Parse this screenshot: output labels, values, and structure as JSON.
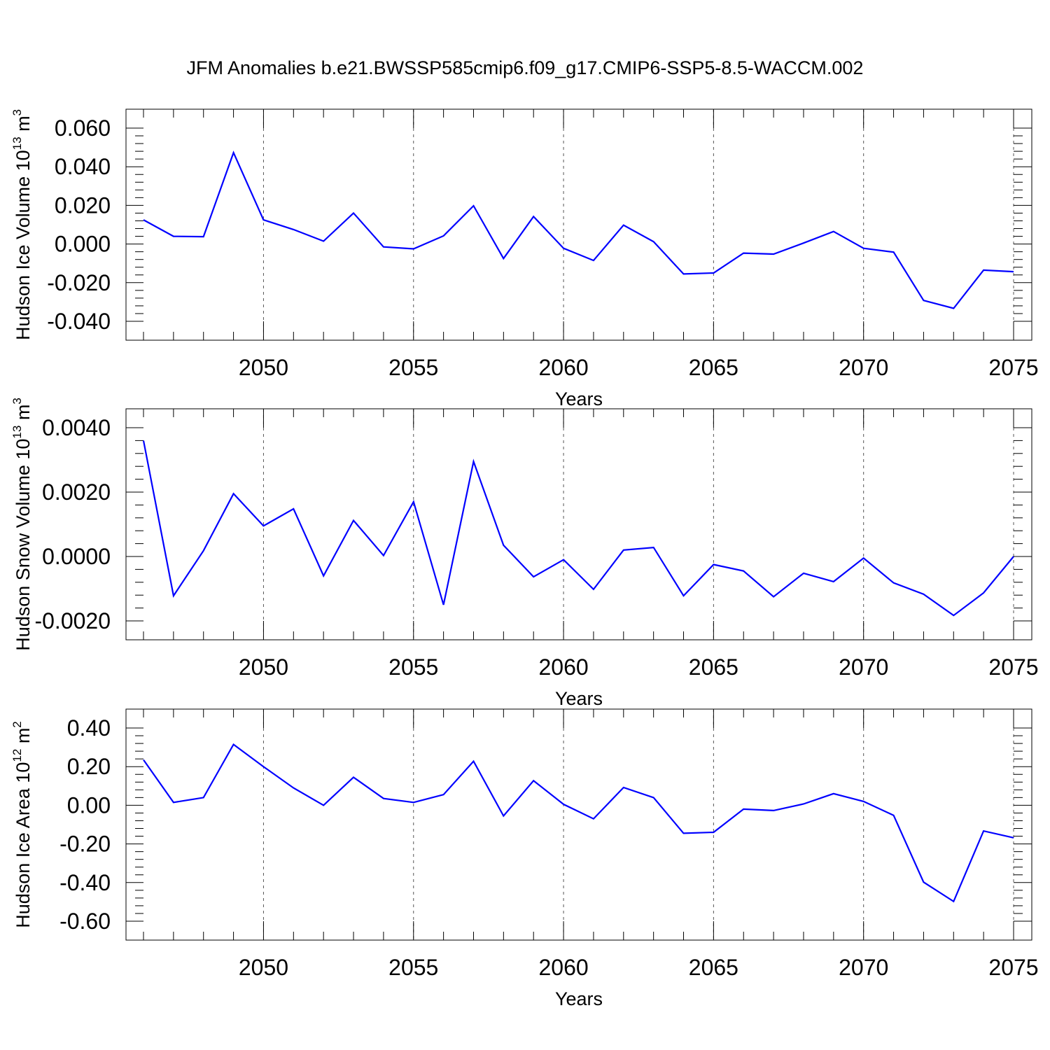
{
  "title": "JFM Anomalies b.e21.BWSSP585cmip6.f09_g17.CMIP6-SSP5-8.5-WACCM.002",
  "line_color": "#0000ff",
  "chart_data": [
    {
      "type": "line",
      "ylabel": "Hudson Ice Volume",
      "ylabel_unit": "10",
      "ylabel_exp": "13",
      "ylabel_unit_tail": " m",
      "ylabel_unit_exp": "3",
      "xlabel": "Years",
      "xlim": [
        2046,
        2075
      ],
      "ylim": [
        -0.04,
        0.06
      ],
      "grid": "dashed vertical at major x ticks",
      "xticks": [
        2050,
        2055,
        2060,
        2065,
        2070,
        2075
      ],
      "xtick_labels": [
        "2050",
        "2055",
        "2060",
        "2065",
        "2070",
        "2075"
      ],
      "yticks": [
        0.06,
        0.04,
        0.02,
        0.0,
        -0.02,
        -0.04
      ],
      "ytick_labels": [
        "0.060",
        "0.040",
        "0.020",
        "0.000",
        "-0.020",
        "-0.040"
      ],
      "x": [
        2046,
        2047,
        2048,
        2049,
        2050,
        2051,
        2052,
        2053,
        2054,
        2055,
        2056,
        2057,
        2058,
        2059,
        2060,
        2061,
        2062,
        2063,
        2064,
        2065,
        2066,
        2067,
        2068,
        2069,
        2070,
        2071,
        2072,
        2073,
        2074,
        2075
      ],
      "values": [
        0.0125,
        0.004,
        0.0038,
        0.0473,
        0.0125,
        0.0075,
        0.0015,
        0.016,
        -0.0015,
        -0.0025,
        0.0042,
        0.0198,
        -0.0075,
        0.0142,
        -0.0022,
        -0.0085,
        0.0098,
        0.0012,
        -0.0155,
        -0.015,
        -0.0047,
        -0.0052,
        0.0005,
        0.0065,
        -0.0022,
        -0.0042,
        -0.0292,
        -0.0333,
        -0.0135,
        -0.0143
      ]
    },
    {
      "type": "line",
      "ylabel": "Hudson Snow Volume",
      "ylabel_unit": "10",
      "ylabel_exp": "13",
      "ylabel_unit_tail": " m",
      "ylabel_unit_exp": "3",
      "xlabel": "Years",
      "xlim": [
        2046,
        2075
      ],
      "ylim": [
        -0.002,
        0.004
      ],
      "grid": "dashed vertical at major x ticks",
      "xticks": [
        2050,
        2055,
        2060,
        2065,
        2070,
        2075
      ],
      "xtick_labels": [
        "2050",
        "2055",
        "2060",
        "2065",
        "2070",
        "2075"
      ],
      "yticks": [
        0.004,
        0.002,
        0.0,
        -0.002
      ],
      "ytick_labels": [
        "0.0040",
        "0.0020",
        "0.0000",
        "-0.0020"
      ],
      "x": [
        2046,
        2047,
        2048,
        2049,
        2050,
        2051,
        2052,
        2053,
        2054,
        2055,
        2056,
        2057,
        2058,
        2059,
        2060,
        2061,
        2062,
        2063,
        2064,
        2065,
        2066,
        2067,
        2068,
        2069,
        2070,
        2071,
        2072,
        2073,
        2074,
        2075
      ],
      "values": [
        0.0036,
        -0.00122,
        0.00018,
        0.00195,
        0.00095,
        0.00148,
        -0.0006,
        0.00112,
        3e-05,
        0.0017,
        -0.0015,
        0.00295,
        0.00035,
        -0.00063,
        -0.0001,
        -0.00102,
        0.0002,
        0.00028,
        -0.00122,
        -0.00025,
        -0.00045,
        -0.00125,
        -0.00052,
        -0.00078,
        -5e-05,
        -0.00082,
        -0.00117,
        -0.00183,
        -0.00113,
        0.0
      ]
    },
    {
      "type": "line",
      "ylabel": "Hudson Ice Area",
      "ylabel_unit": "10",
      "ylabel_exp": "12",
      "ylabel_unit_tail": " m",
      "ylabel_unit_exp": "2",
      "xlabel": "Years",
      "xlim": [
        2046,
        2075
      ],
      "ylim": [
        -0.6,
        0.4
      ],
      "grid": "dashed vertical at major x ticks",
      "xticks": [
        2050,
        2055,
        2060,
        2065,
        2070,
        2075
      ],
      "xtick_labels": [
        "2050",
        "2055",
        "2060",
        "2065",
        "2070",
        "2075"
      ],
      "yticks": [
        0.4,
        0.2,
        0.0,
        -0.2,
        -0.4,
        -0.6
      ],
      "ytick_labels": [
        "0.40",
        "0.20",
        "0.00",
        "-0.20",
        "-0.40",
        "-0.60"
      ],
      "x": [
        2046,
        2047,
        2048,
        2049,
        2050,
        2051,
        2052,
        2053,
        2054,
        2055,
        2056,
        2057,
        2058,
        2059,
        2060,
        2061,
        2062,
        2063,
        2064,
        2065,
        2066,
        2067,
        2068,
        2069,
        2070,
        2071,
        2072,
        2073,
        2074,
        2075
      ],
      "values": [
        0.235,
        0.015,
        0.04,
        0.315,
        0.2,
        0.09,
        0.0,
        0.145,
        0.035,
        0.015,
        0.055,
        0.228,
        -0.055,
        0.127,
        0.005,
        -0.07,
        0.092,
        0.04,
        -0.145,
        -0.14,
        -0.02,
        -0.027,
        0.007,
        0.06,
        0.02,
        -0.052,
        -0.398,
        -0.498,
        -0.133,
        -0.168
      ]
    }
  ]
}
